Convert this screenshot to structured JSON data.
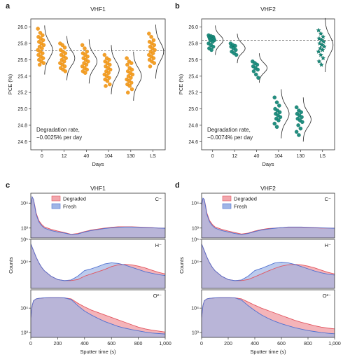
{
  "colors": {
    "vhf1": "#f39c1e",
    "vhf1_edge": "#d97c06",
    "vhf2": "#16897a",
    "vhf2_edge": "#0d6456",
    "degraded_fill": "#f2a7ad",
    "degraded_line": "#e2545e",
    "fresh_fill": "#9fb5e6",
    "fresh_line": "#4e6fd0",
    "overlap_fill": "#b8a7c9"
  },
  "chart_data": [
    {
      "id": "a",
      "type": "scatter",
      "panel_label": "a",
      "title": "VHF1",
      "xlabel": "Days",
      "ylabel": "PCE (%)",
      "categories": [
        "0",
        "12",
        "40",
        "104",
        "130",
        "LS"
      ],
      "ylim": [
        24.5,
        26.1
      ],
      "yticks": [
        24.6,
        24.8,
        25.0,
        25.2,
        25.4,
        25.6,
        25.8,
        26.0
      ],
      "reference_line": 25.71,
      "annotation": [
        "Degradation rate,",
        "−0.0025% per day"
      ],
      "marker": "circle",
      "color": "#f39c1e",
      "distributions": [
        {
          "mean": 25.72,
          "sd": 0.1,
          "points": [
            25.98,
            25.93,
            25.9,
            25.88,
            25.86,
            25.84,
            25.82,
            25.8,
            25.78,
            25.76,
            25.74,
            25.72,
            25.7,
            25.68,
            25.66,
            25.64,
            25.62,
            25.6,
            25.58,
            25.56,
            25.54
          ]
        },
        {
          "mean": 25.62,
          "sd": 0.09,
          "points": [
            25.8,
            25.78,
            25.75,
            25.72,
            25.7,
            25.68,
            25.66,
            25.64,
            25.62,
            25.6,
            25.58,
            25.56,
            25.54,
            25.52,
            25.5,
            25.48,
            25.46
          ]
        },
        {
          "mean": 25.58,
          "sd": 0.09,
          "points": [
            25.78,
            25.74,
            25.7,
            25.68,
            25.66,
            25.64,
            25.62,
            25.6,
            25.58,
            25.56,
            25.54,
            25.52,
            25.5,
            25.48,
            25.46,
            25.44
          ]
        },
        {
          "mean": 25.48,
          "sd": 0.1,
          "points": [
            25.66,
            25.62,
            25.6,
            25.58,
            25.56,
            25.54,
            25.52,
            25.5,
            25.48,
            25.46,
            25.44,
            25.42,
            25.4,
            25.38,
            25.36,
            25.34,
            25.3,
            25.28
          ]
        },
        {
          "mean": 25.4,
          "sd": 0.1,
          "points": [
            25.62,
            25.58,
            25.56,
            25.54,
            25.5,
            25.48,
            25.46,
            25.44,
            25.42,
            25.4,
            25.38,
            25.36,
            25.34,
            25.32,
            25.3,
            25.28,
            25.24,
            25.2
          ]
        },
        {
          "mean": 25.7,
          "sd": 0.11,
          "points": [
            25.92,
            25.88,
            25.84,
            25.82,
            25.8,
            25.78,
            25.76,
            25.74,
            25.72,
            25.7,
            25.68,
            25.66,
            25.64,
            25.62,
            25.6,
            25.58,
            25.56,
            25.52
          ]
        }
      ]
    },
    {
      "id": "b",
      "type": "scatter",
      "panel_label": "b",
      "title": "VHF2",
      "xlabel": "Days",
      "ylabel": "PCE (%)",
      "categories": [
        "0",
        "12",
        "40",
        "104",
        "130",
        "LS"
      ],
      "ylim": [
        24.5,
        26.1
      ],
      "yticks": [
        24.6,
        24.8,
        25.0,
        25.2,
        25.4,
        25.6,
        25.8,
        26.0
      ],
      "reference_line": 25.84,
      "annotation": [
        "Degradation rate,",
        "−0.0074% per day"
      ],
      "marker": "circle",
      "color": "#16897a",
      "distributions": [
        {
          "mean": 25.84,
          "sd": 0.06,
          "points": [
            25.9,
            25.89,
            25.88,
            25.88,
            25.87,
            25.86,
            25.86,
            25.85,
            25.84,
            25.84,
            25.82,
            25.8,
            25.78,
            25.76,
            25.74,
            25.72
          ]
        },
        {
          "mean": 25.74,
          "sd": 0.06,
          "points": [
            25.8,
            25.78,
            25.77,
            25.76,
            25.74,
            25.72,
            25.7,
            25.68,
            25.66
          ]
        },
        {
          "mean": 25.5,
          "sd": 0.06,
          "points": [
            25.58,
            25.56,
            25.54,
            25.52,
            25.5,
            25.48,
            25.46,
            25.42,
            25.38
          ]
        },
        {
          "mean": 24.94,
          "sd": 0.1,
          "points": [
            25.14,
            25.08,
            25.04,
            25.0,
            24.98,
            24.96,
            24.94,
            24.92,
            24.9,
            24.88,
            24.86,
            24.82,
            24.78
          ]
        },
        {
          "mean": 24.87,
          "sd": 0.09,
          "points": [
            25.02,
            24.98,
            24.96,
            24.94,
            24.92,
            24.9,
            24.88,
            24.86,
            24.84,
            24.8,
            24.76,
            24.72,
            24.68
          ]
        },
        {
          "mean": 25.78,
          "sd": 0.11,
          "points": [
            25.96,
            25.92,
            25.88,
            25.86,
            25.84,
            25.82,
            25.8,
            25.78,
            25.76,
            25.74,
            25.72,
            25.7,
            25.66,
            25.62,
            25.58,
            25.54
          ],
          "marker": "star"
        }
      ]
    },
    {
      "id": "c",
      "type": "area",
      "panel_label": "c",
      "title": "VHF1",
      "xlabel": "Sputter time (s)",
      "ylabel": "Counts",
      "xlim": [
        0,
        1000
      ],
      "xticks": [
        0,
        200,
        400,
        600,
        800,
        1000
      ],
      "xtick_labels": [
        "0",
        "200",
        "400",
        "600",
        "800",
        "1,000"
      ],
      "legend": [
        "Degraded",
        "Fresh"
      ],
      "subplots": [
        {
          "ion": "C⁻",
          "log_ylim": [
            2.6,
            4.4
          ],
          "yticks": [
            {
              "v": 3,
              "label": "10³"
            },
            {
              "v": 4,
              "label": "10⁴"
            }
          ],
          "x": [
            0,
            10,
            20,
            30,
            40,
            60,
            80,
            100,
            150,
            200,
            250,
            300,
            350,
            400,
            450,
            500,
            550,
            600,
            650,
            700,
            750,
            800,
            850,
            900,
            950,
            1000
          ],
          "degraded_log": [
            3.9,
            4.25,
            4.15,
            3.9,
            3.6,
            3.3,
            3.15,
            3.05,
            2.95,
            2.88,
            2.82,
            2.75,
            2.78,
            2.86,
            2.92,
            2.96,
            3.0,
            3.03,
            3.05,
            3.05,
            3.05,
            3.04,
            3.03,
            3.02,
            3.0,
            3.0
          ],
          "fresh_log": [
            3.9,
            4.25,
            4.15,
            3.85,
            3.55,
            3.25,
            3.1,
            3.0,
            2.9,
            2.84,
            2.8,
            2.74,
            2.76,
            2.84,
            2.9,
            2.94,
            2.98,
            3.01,
            3.03,
            3.04,
            3.04,
            3.03,
            3.02,
            3.01,
            3.0,
            2.99
          ]
        },
        {
          "ion": "H⁻",
          "log_ylim": [
            2.8,
            5.0
          ],
          "yticks": [
            {
              "v": 4,
              "label": "10⁴"
            },
            {
              "v": 5,
              "label": "10⁵"
            }
          ],
          "x": [
            0,
            20,
            40,
            60,
            80,
            100,
            150,
            200,
            250,
            300,
            350,
            400,
            450,
            500,
            550,
            600,
            650,
            700,
            750,
            800,
            850,
            900,
            950,
            1000
          ],
          "degraded_log": [
            4.8,
            4.5,
            4.2,
            3.95,
            3.75,
            3.6,
            3.35,
            3.2,
            3.15,
            3.15,
            3.2,
            3.35,
            3.45,
            3.55,
            3.65,
            3.78,
            3.86,
            3.88,
            3.86,
            3.8,
            3.72,
            3.62,
            3.52,
            3.45
          ],
          "fresh_log": [
            4.8,
            4.5,
            4.2,
            3.95,
            3.75,
            3.6,
            3.35,
            3.2,
            3.15,
            3.18,
            3.35,
            3.6,
            3.68,
            3.78,
            3.9,
            3.95,
            3.92,
            3.85,
            3.75,
            3.65,
            3.55,
            3.48,
            3.42,
            3.38
          ]
        },
        {
          "ion": "O²⁻",
          "log_ylim": [
            2.8,
            4.75
          ],
          "yticks": [
            {
              "v": 3,
              "label": "10³"
            },
            {
              "v": 4,
              "label": "10⁴"
            }
          ],
          "x": [
            0,
            10,
            20,
            40,
            60,
            100,
            150,
            200,
            250,
            300,
            350,
            400,
            450,
            500,
            550,
            600,
            650,
            700,
            750,
            800,
            850,
            900,
            950,
            1000
          ],
          "degraded_log": [
            3.6,
            4.1,
            4.3,
            4.38,
            4.4,
            4.42,
            4.43,
            4.43,
            4.42,
            4.38,
            4.2,
            4.05,
            3.92,
            3.82,
            3.72,
            3.62,
            3.52,
            3.42,
            3.32,
            3.22,
            3.15,
            3.1,
            3.06,
            3.02
          ],
          "fresh_log": [
            3.6,
            4.1,
            4.3,
            4.38,
            4.4,
            4.42,
            4.43,
            4.43,
            4.42,
            4.35,
            4.1,
            3.88,
            3.72,
            3.58,
            3.45,
            3.35,
            3.25,
            3.18,
            3.12,
            3.07,
            3.02,
            2.98,
            2.96,
            2.94
          ]
        }
      ]
    },
    {
      "id": "d",
      "type": "area",
      "panel_label": "d",
      "title": "VHF2",
      "xlabel": "Sputter time (s)",
      "ylabel": "Counts",
      "xlim": [
        0,
        1000
      ],
      "xticks": [
        0,
        200,
        400,
        600,
        800,
        1000
      ],
      "xtick_labels": [
        "0",
        "200",
        "400",
        "600",
        "800",
        "1,000"
      ],
      "legend": [
        "Degraded",
        "Fresh"
      ],
      "subplots": [
        {
          "ion": "C⁻",
          "log_ylim": [
            2.6,
            4.4
          ],
          "yticks": [
            {
              "v": 3,
              "label": "10³"
            },
            {
              "v": 4,
              "label": "10⁴"
            }
          ],
          "x": [
            0,
            10,
            20,
            30,
            40,
            60,
            80,
            100,
            150,
            200,
            250,
            300,
            350,
            400,
            450,
            500,
            550,
            600,
            650,
            700,
            750,
            800,
            850,
            900,
            950,
            1000
          ],
          "degraded_log": [
            3.9,
            4.2,
            4.15,
            3.9,
            3.6,
            3.3,
            3.15,
            3.05,
            2.95,
            2.88,
            2.82,
            2.76,
            2.8,
            2.88,
            2.94,
            2.98,
            3.0,
            3.02,
            3.03,
            3.03,
            3.03,
            3.02,
            3.01,
            3.0,
            3.0,
            3.0
          ],
          "fresh_log": [
            3.9,
            4.2,
            4.15,
            3.85,
            3.55,
            3.25,
            3.1,
            3.0,
            2.9,
            2.84,
            2.78,
            2.74,
            2.78,
            2.86,
            2.92,
            2.96,
            2.99,
            3.02,
            3.04,
            3.04,
            3.04,
            3.03,
            3.02,
            3.01,
            3.0,
            2.99
          ]
        },
        {
          "ion": "H⁻",
          "log_ylim": [
            2.8,
            5.0
          ],
          "yticks": [
            {
              "v": 4,
              "label": "10⁴"
            },
            {
              "v": 5,
              "label": "10⁵"
            }
          ],
          "x": [
            0,
            20,
            40,
            60,
            80,
            100,
            150,
            200,
            250,
            300,
            350,
            400,
            450,
            500,
            550,
            600,
            650,
            700,
            750,
            800,
            850,
            900,
            950,
            1000
          ],
          "degraded_log": [
            4.8,
            4.5,
            4.2,
            3.95,
            3.75,
            3.6,
            3.35,
            3.2,
            3.15,
            3.15,
            3.2,
            3.32,
            3.45,
            3.58,
            3.7,
            3.8,
            3.86,
            3.88,
            3.86,
            3.8,
            3.72,
            3.62,
            3.52,
            3.45
          ],
          "fresh_log": [
            4.8,
            4.5,
            4.2,
            3.95,
            3.75,
            3.6,
            3.35,
            3.2,
            3.15,
            3.18,
            3.35,
            3.6,
            3.7,
            3.82,
            3.94,
            3.98,
            3.95,
            3.88,
            3.78,
            3.68,
            3.58,
            3.5,
            3.44,
            3.4
          ]
        },
        {
          "ion": "O²⁻",
          "log_ylim": [
            2.8,
            4.75
          ],
          "yticks": [
            {
              "v": 3,
              "label": "10³"
            },
            {
              "v": 4,
              "label": "10⁴"
            }
          ],
          "x": [
            0,
            10,
            20,
            40,
            60,
            100,
            150,
            200,
            250,
            300,
            350,
            400,
            450,
            500,
            550,
            600,
            650,
            700,
            750,
            800,
            850,
            900,
            950,
            1000
          ],
          "degraded_log": [
            3.6,
            4.1,
            4.3,
            4.38,
            4.4,
            4.42,
            4.43,
            4.43,
            4.42,
            4.38,
            4.25,
            4.12,
            4.0,
            3.9,
            3.8,
            3.7,
            3.6,
            3.5,
            3.42,
            3.35,
            3.28,
            3.22,
            3.18,
            3.15
          ],
          "fresh_log": [
            3.6,
            4.1,
            4.3,
            4.38,
            4.4,
            4.42,
            4.43,
            4.43,
            4.42,
            4.33,
            4.1,
            3.9,
            3.72,
            3.58,
            3.46,
            3.36,
            3.28,
            3.2,
            3.14,
            3.08,
            3.04,
            3.0,
            2.97,
            2.95
          ]
        }
      ]
    }
  ]
}
